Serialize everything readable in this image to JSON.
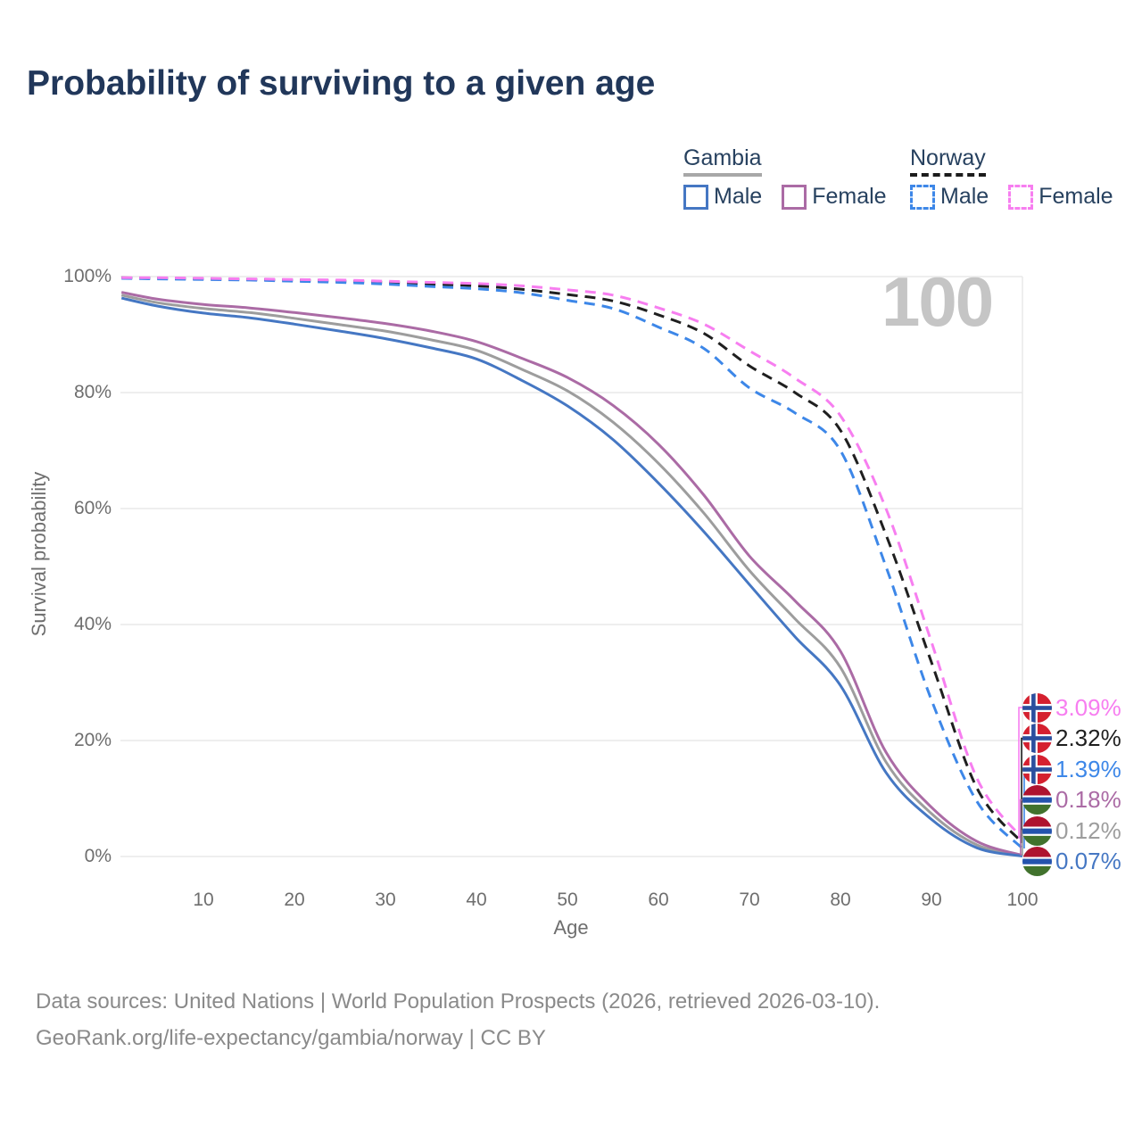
{
  "title": "Probability of surviving to a given age",
  "watermark": "100",
  "legend": {
    "groups": [
      {
        "label": "Gambia",
        "line_style": "solid",
        "underline_color": "#a8a8a8",
        "items": [
          {
            "label": "Male",
            "color": "#4577c3"
          },
          {
            "label": "Female",
            "color": "#ab6ba5"
          }
        ]
      },
      {
        "label": "Norway",
        "line_style": "dashed",
        "underline_color": "#1c1c1c",
        "items": [
          {
            "label": "Male",
            "color": "#3d87e8"
          },
          {
            "label": "Female",
            "color": "#f77ef0"
          }
        ]
      }
    ]
  },
  "y_axis": {
    "title": "Survival probability",
    "ticks": [
      "0%",
      "20%",
      "40%",
      "60%",
      "80%",
      "100%"
    ],
    "tick_values": [
      0,
      20,
      40,
      60,
      80,
      100
    ]
  },
  "x_axis": {
    "title": "Age",
    "ticks": [
      "10",
      "20",
      "30",
      "40",
      "50",
      "60",
      "70",
      "80",
      "90",
      "100"
    ],
    "tick_values": [
      10,
      20,
      30,
      40,
      50,
      60,
      70,
      80,
      90,
      100
    ]
  },
  "end_labels": [
    {
      "label": "3.09%",
      "value_pct": 3.09,
      "flag": "norway",
      "color": "#f77ef0",
      "series": "Norway Female"
    },
    {
      "label": "2.32%",
      "value_pct": 2.32,
      "flag": "norway",
      "color": "#1f1f1f",
      "series": "Norway Both sexes"
    },
    {
      "label": "1.39%",
      "value_pct": 1.39,
      "flag": "norway",
      "color": "#3d87e8",
      "series": "Norway Male"
    },
    {
      "label": "0.18%",
      "value_pct": 0.18,
      "flag": "gambia",
      "color": "#ab6ba5",
      "series": "Gambia Female"
    },
    {
      "label": "0.12%",
      "value_pct": 0.12,
      "flag": "gambia",
      "color": "#9d9d9d",
      "series": "Gambia Both sexes"
    },
    {
      "label": "0.07%",
      "value_pct": 0.07,
      "flag": "gambia",
      "color": "#4577c3",
      "series": "Gambia Male"
    }
  ],
  "footer": {
    "line1": "Data sources: United Nations | World Population Prospects (2026, retrieved 2026-03-10).",
    "line2": "GeoRank.org/life-expectancy/gambia/norway | CC BY"
  },
  "chart_data": {
    "type": "line",
    "title": "Probability of surviving to a given age",
    "xlabel": "Age",
    "ylabel": "Survival probability",
    "xlim": [
      0,
      100
    ],
    "ylim": [
      0,
      100
    ],
    "y_unit": "%",
    "grid": "horizontal",
    "x": [
      1,
      5,
      10,
      15,
      20,
      25,
      30,
      35,
      40,
      45,
      50,
      55,
      60,
      65,
      70,
      75,
      80,
      85,
      90,
      95,
      100
    ],
    "series": [
      {
        "name": "Gambia Both sexes",
        "country": "Gambia",
        "sex": "Both",
        "color": "#9d9d9d",
        "dashed": false,
        "values": [
          96.8,
          95.5,
          94.5,
          93.8,
          92.8,
          91.7,
          90.6,
          89.1,
          87.3,
          84.0,
          80.3,
          74.9,
          67.8,
          59.2,
          49.3,
          41.0,
          32.6,
          16.3,
          7.4,
          2.0,
          0.12
        ]
      },
      {
        "name": "Gambia Female",
        "country": "Gambia",
        "sex": "Female",
        "color": "#ab6ba5",
        "dashed": false,
        "values": [
          97.3,
          96.1,
          95.2,
          94.6,
          93.8,
          92.9,
          91.9,
          90.6,
          88.8,
          85.9,
          82.6,
          77.8,
          71.1,
          62.3,
          51.8,
          44.1,
          35.4,
          18.0,
          8.5,
          2.6,
          0.18
        ]
      },
      {
        "name": "Gambia Male",
        "country": "Gambia",
        "sex": "Male",
        "color": "#4577c3",
        "dashed": false,
        "values": [
          96.3,
          94.9,
          93.7,
          92.9,
          91.8,
          90.6,
          89.3,
          87.7,
          85.8,
          82.1,
          77.7,
          71.9,
          64.4,
          56.0,
          46.9,
          37.9,
          29.5,
          14.5,
          6.4,
          1.5,
          0.07
        ]
      },
      {
        "name": "Norway Both sexes",
        "country": "Norway",
        "sex": "Both",
        "color": "#1f1f1f",
        "dashed": true,
        "values": [
          99.8,
          99.7,
          99.6,
          99.5,
          99.4,
          99.2,
          99.0,
          98.7,
          98.4,
          97.8,
          96.9,
          95.8,
          93.4,
          90.2,
          84.6,
          80.0,
          73.5,
          55.5,
          33.5,
          11.8,
          2.32
        ]
      },
      {
        "name": "Norway Male",
        "country": "Norway",
        "sex": "Male",
        "color": "#3d87e8",
        "dashed": true,
        "values": [
          99.7,
          99.6,
          99.5,
          99.4,
          99.2,
          99.0,
          98.7,
          98.3,
          97.9,
          97.2,
          95.9,
          94.5,
          91.3,
          87.6,
          80.8,
          76.5,
          70.0,
          50.0,
          27.0,
          9.5,
          1.39
        ]
      },
      {
        "name": "Norway Female",
        "country": "Norway",
        "sex": "Female",
        "color": "#f77ef0",
        "dashed": true,
        "values": [
          99.8,
          99.8,
          99.7,
          99.6,
          99.5,
          99.4,
          99.2,
          99.0,
          98.8,
          98.4,
          97.7,
          96.8,
          94.6,
          91.8,
          87.2,
          82.5,
          76.0,
          60.0,
          37.0,
          13.5,
          3.09
        ]
      }
    ],
    "legend_position": "top-right",
    "end_annotations": [
      3.09,
      2.32,
      1.39,
      0.18,
      0.12,
      0.07
    ]
  }
}
